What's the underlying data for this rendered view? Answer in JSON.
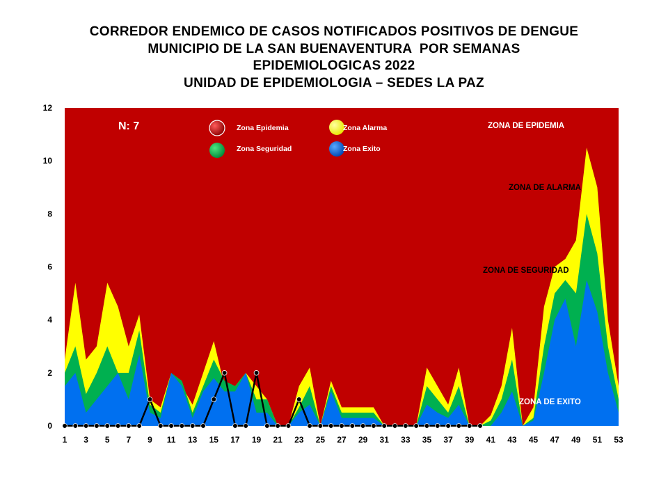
{
  "chart_data": {
    "type": "area",
    "title": [
      "CORREDOR ENDEMICO DE CASOS NOTIFICADOS POSITIVOS DE DENGUE",
      "MUNICIPIO DE LA SAN BUENAVENTURA  POR SEMANAS",
      "EPIDEMIOLOGICAS 2022",
      "UNIDAD DE EPIDEMIOLOGIA – SEDES LA PAZ"
    ],
    "annotation_n": "N: 7",
    "xlim": [
      1,
      53
    ],
    "ylim": [
      0,
      12
    ],
    "x_ticks": [
      "1",
      "3",
      "5",
      "7",
      "9",
      "11",
      "13",
      "15",
      "17",
      "19",
      "21",
      "23",
      "25",
      "27",
      "29",
      "31",
      "33",
      "35",
      "37",
      "39",
      "41",
      "43",
      "45",
      "47",
      "49",
      "51",
      "53"
    ],
    "y_ticks": [
      "0",
      "2",
      "4",
      "6",
      "8",
      "10",
      "12"
    ],
    "legend": {
      "placement": "top",
      "items": [
        {
          "label": "Zona Epidemia",
          "color": "#c00000"
        },
        {
          "label": "Zona Alarma",
          "color": "#ffff00"
        },
        {
          "label": "Zona Seguridad",
          "color": "#00b050"
        },
        {
          "label": "Zona Exito",
          "color": "#0070f0"
        }
      ]
    },
    "zone_labels": {
      "epidemia": "ZONA DE EPIDEMIA",
      "alarma": "ZONA DE ALARMA",
      "seguridad": "ZONA DE  SEGURIDAD",
      "exito": "ZONA DE  EXITO"
    },
    "series": [
      {
        "name": "Zona Epidemia",
        "color": "#c00000",
        "values": [
          12,
          12,
          12,
          12,
          12,
          12,
          12,
          12,
          12,
          12,
          12,
          12,
          12,
          12,
          12,
          12,
          12,
          12,
          12,
          12,
          12,
          12,
          12,
          12,
          12,
          12,
          12,
          12,
          12,
          12,
          12,
          12,
          12,
          12,
          12,
          12,
          12,
          12,
          12,
          12,
          12,
          12,
          12,
          12,
          12,
          12,
          12,
          12,
          12,
          12,
          12,
          12,
          12
        ]
      },
      {
        "name": "Zona Alarma",
        "color": "#ffff00",
        "values": [
          2.5,
          5.4,
          2.5,
          3,
          5.4,
          4.5,
          3,
          4.2,
          1,
          0.7,
          2,
          1.5,
          0.8,
          2,
          3.2,
          1.5,
          1.5,
          2,
          1.5,
          1,
          0,
          0,
          1.5,
          2.2,
          0,
          1.7,
          0.7,
          0.7,
          0.7,
          0.7,
          0,
          0,
          0,
          0,
          2.2,
          1.5,
          0.8,
          2.2,
          0,
          0,
          0.4,
          1.5,
          3.7,
          0,
          0.7,
          4.5,
          6,
          6.3,
          7,
          10.5,
          9,
          4,
          1.5
        ]
      },
      {
        "name": "Zona Seguridad",
        "color": "#00b050",
        "values": [
          2,
          3,
          1.2,
          2,
          3,
          2,
          2,
          3.6,
          0.8,
          0.5,
          2,
          1.7,
          0.5,
          1.5,
          2.5,
          1.7,
          1.5,
          2,
          1,
          1,
          0,
          0,
          0.7,
          1.5,
          0,
          1.5,
          0.5,
          0.5,
          0.5,
          0.5,
          0,
          0,
          0,
          0,
          1.5,
          1,
          0.5,
          1.5,
          0,
          0,
          0.2,
          1,
          2.5,
          0,
          0.3,
          3,
          5,
          5.5,
          5,
          8,
          6.5,
          3,
          1
        ]
      },
      {
        "name": "Zona Exito",
        "color": "#0070f0",
        "values": [
          1.5,
          2,
          0.5,
          1,
          1.5,
          2,
          1,
          2.7,
          0.5,
          0.3,
          2,
          1.5,
          0.3,
          1.3,
          1.8,
          1.3,
          1.3,
          2,
          0.5,
          0.5,
          0,
          0,
          0.5,
          0.8,
          0,
          1.3,
          0.3,
          0.3,
          0.3,
          0.3,
          0,
          0,
          0,
          0,
          0.8,
          0.5,
          0.3,
          0.8,
          0,
          0,
          0,
          0.5,
          1.3,
          0,
          0.2,
          2,
          4,
          4.8,
          3,
          5.5,
          4.3,
          2,
          0.5
        ]
      },
      {
        "name": "2022",
        "color": "#000000",
        "values": [
          0,
          0,
          0,
          0,
          0,
          0,
          0,
          0,
          1,
          0,
          0,
          0,
          0,
          0,
          1,
          2,
          0,
          0,
          2,
          0,
          0,
          0,
          1,
          0,
          0,
          0,
          0,
          0,
          0,
          0,
          0,
          0,
          0,
          0,
          0,
          0,
          0,
          0,
          0,
          0
        ]
      }
    ]
  }
}
